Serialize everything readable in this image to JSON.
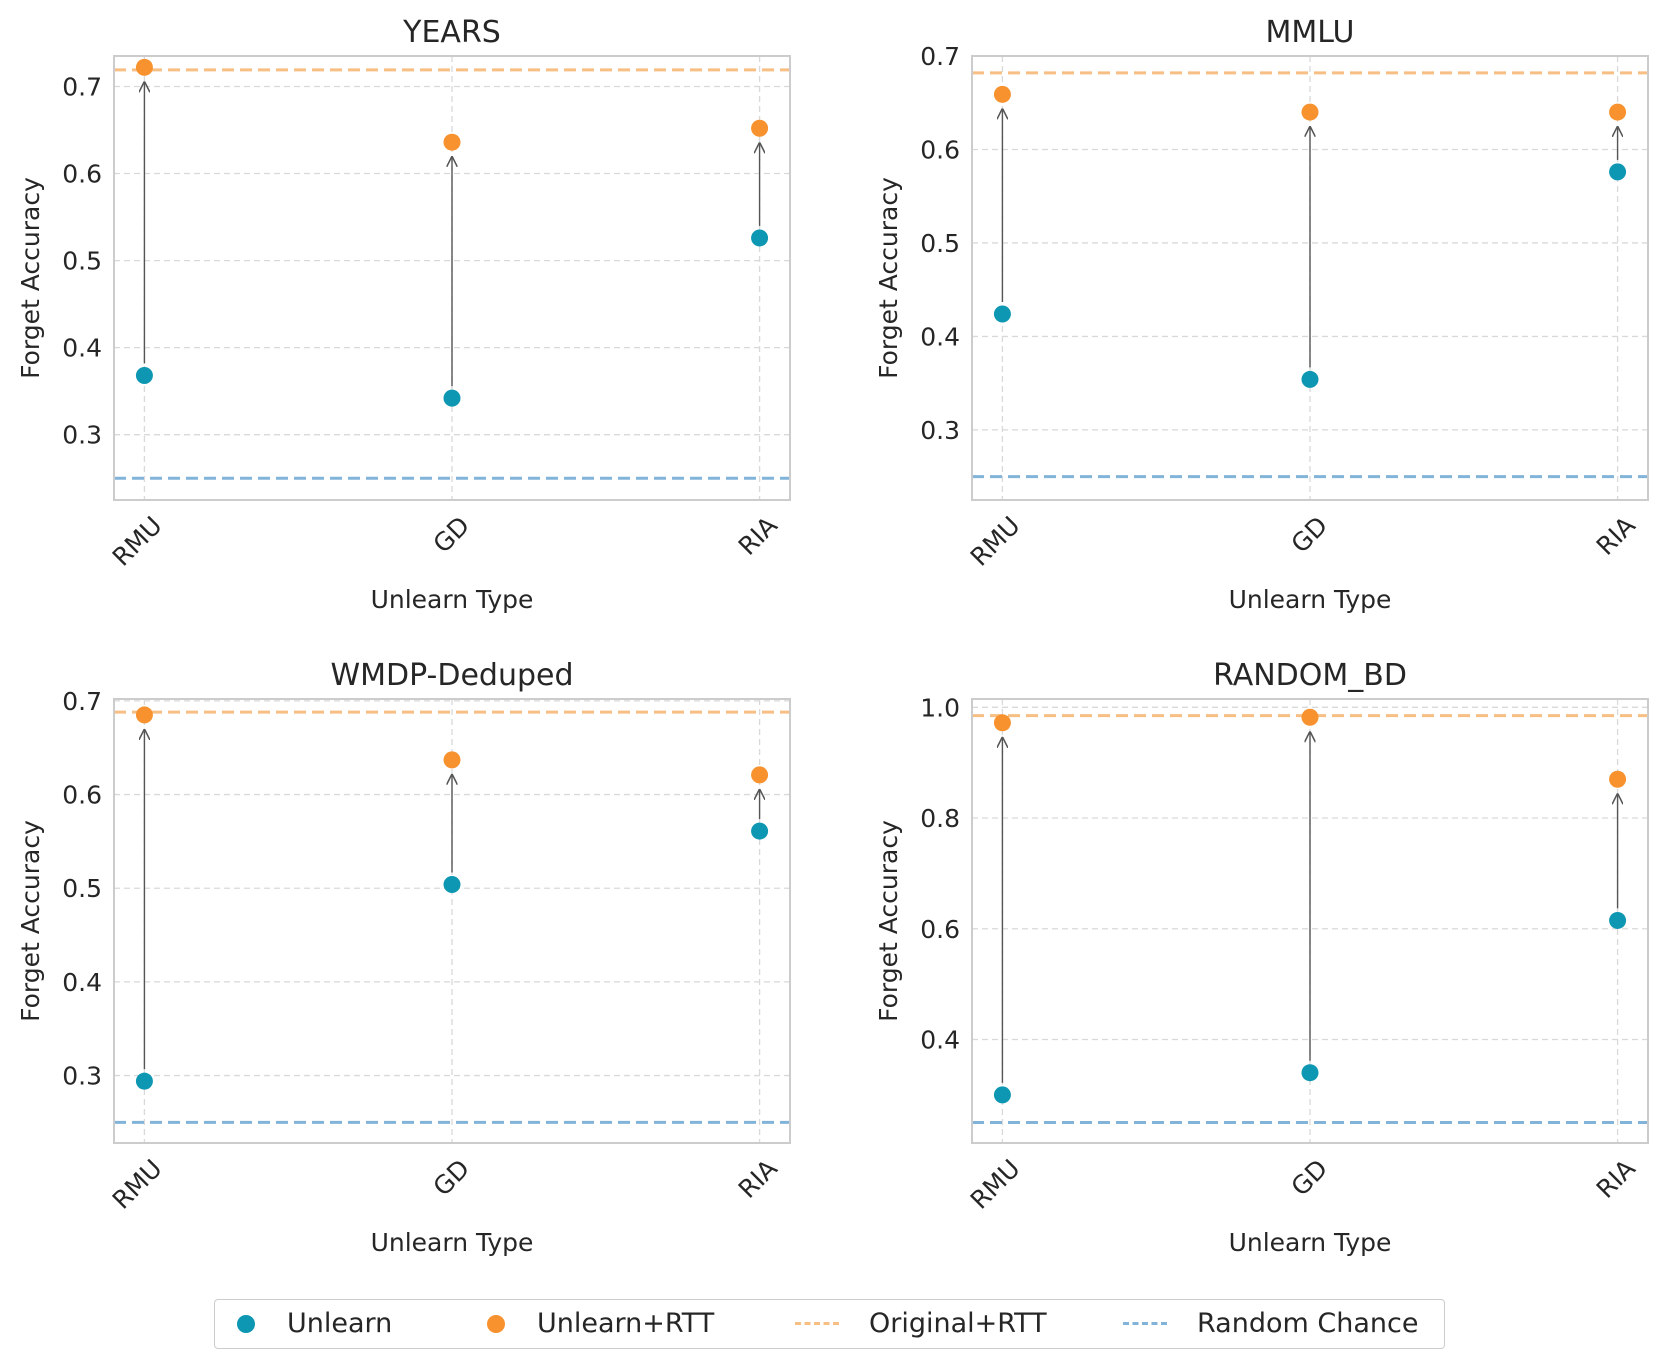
{
  "colors": {
    "unlearn": "#0e97b2",
    "unlearn_rtt": "#f7922e",
    "original_rtt": "#f8bf84",
    "random_chance": "#82b4da",
    "arrow": "#555555",
    "grid": "#d9d9d9",
    "axes": "#cccccc"
  },
  "legend": {
    "unlearn": "Unlearn",
    "unlearn_rtt": "Unlearn+RTT",
    "original_rtt": "Original+RTT",
    "random_chance": "Random Chance"
  },
  "chart_data": [
    {
      "type": "scatter",
      "title": "YEARS",
      "xlabel": "Unlearn Type",
      "ylabel": "Forget Accuracy",
      "categories": [
        "RMU",
        "GD",
        "RIA"
      ],
      "ylim": [
        0.225,
        0.735
      ],
      "yticks": [
        "0.3",
        "0.4",
        "0.5",
        "0.6",
        "0.7"
      ],
      "series": [
        {
          "name": "Unlearn",
          "values": [
            0.368,
            0.342,
            0.526
          ]
        },
        {
          "name": "Unlearn+RTT",
          "values": [
            0.722,
            0.636,
            0.652
          ]
        }
      ],
      "original_rtt": 0.719,
      "random_chance": 0.25,
      "grid": true
    },
    {
      "type": "scatter",
      "title": "MMLU",
      "xlabel": "Unlearn Type",
      "ylabel": "Forget Accuracy",
      "categories": [
        "RMU",
        "GD",
        "RIA"
      ],
      "ylim": [
        0.225,
        0.7
      ],
      "yticks": [
        "0.3",
        "0.4",
        "0.5",
        "0.6",
        "0.7"
      ],
      "series": [
        {
          "name": "Unlearn",
          "values": [
            0.424,
            0.354,
            0.576
          ]
        },
        {
          "name": "Unlearn+RTT",
          "values": [
            0.659,
            0.64,
            0.64
          ]
        }
      ],
      "original_rtt": 0.682,
      "random_chance": 0.25,
      "grid": true
    },
    {
      "type": "scatter",
      "title": "WMDP-Deduped",
      "xlabel": "Unlearn Type",
      "ylabel": "Forget Accuracy",
      "categories": [
        "RMU",
        "GD",
        "RIA"
      ],
      "ylim": [
        0.228,
        0.702
      ],
      "yticks": [
        "0.3",
        "0.4",
        "0.5",
        "0.6",
        "0.7"
      ],
      "series": [
        {
          "name": "Unlearn",
          "values": [
            0.294,
            0.504,
            0.561
          ]
        },
        {
          "name": "Unlearn+RTT",
          "values": [
            0.685,
            0.637,
            0.621
          ]
        }
      ],
      "original_rtt": 0.688,
      "random_chance": 0.25,
      "grid": true
    },
    {
      "type": "scatter",
      "title": "RANDOM_BD",
      "xlabel": "Unlearn Type",
      "ylabel": "Forget Accuracy",
      "categories": [
        "RMU",
        "GD",
        "RIA"
      ],
      "ylim": [
        0.213,
        1.015
      ],
      "yticks": [
        "0.4",
        "0.6",
        "0.8",
        "1.0"
      ],
      "series": [
        {
          "name": "Unlearn",
          "values": [
            0.3,
            0.34,
            0.615
          ]
        },
        {
          "name": "Unlearn+RTT",
          "values": [
            0.972,
            0.982,
            0.87
          ]
        }
      ],
      "original_rtt": 0.985,
      "random_chance": 0.25,
      "grid": true
    }
  ]
}
